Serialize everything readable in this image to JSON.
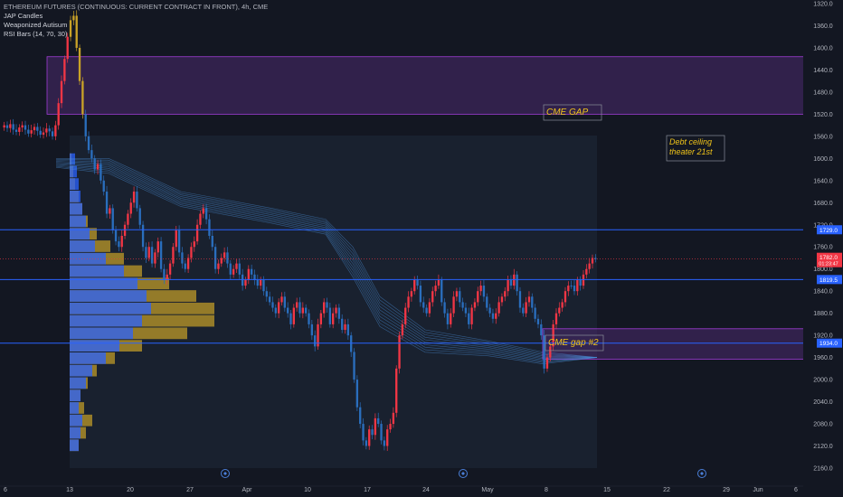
{
  "header": {
    "title": "ETHEREUM FUTURES (CONTINUOUS: CURRENT CONTRACT IN FRONT), 4h, CME",
    "indicators": [
      "JAP Candles",
      "Weaponized Autisum",
      "RSI Bars (14, 70, 30)"
    ]
  },
  "colors": {
    "background": "#131722",
    "up": "#f23645",
    "down": "#2a6ebd",
    "hline": "#2962ff",
    "zone_fill": "#4a2a6e",
    "zone_border": "#a03cd6",
    "vp_blue": "#2962ff",
    "vp_gold": "#c9a227",
    "annotation": "#f0c419",
    "price_red": "#f23645"
  },
  "chart_data": {
    "type": "candlestick",
    "price_axis": {
      "min": 1320,
      "max": 2160,
      "inverted": true,
      "ticks": [
        1320,
        1360,
        1400,
        1440,
        1480,
        1520,
        1560,
        1600,
        1640,
        1680,
        1720,
        1760,
        1800,
        1840,
        1880,
        1920,
        1960,
        2000,
        2040,
        2080,
        2120,
        2160
      ]
    },
    "time_axis": {
      "ticks": [
        "6",
        "13",
        "20",
        "27",
        "Apr",
        "10",
        "17",
        "24",
        "May",
        "8",
        "15",
        "22",
        "29",
        "Jun",
        "6"
      ]
    },
    "current_price": "1782.0",
    "countdown": "01:23:47",
    "price_labels": [
      {
        "price": 1729,
        "text": "1729.0",
        "color": "#2962ff"
      },
      {
        "price": 1819,
        "text": "1819.5",
        "color": "#2962ff"
      },
      {
        "price": 1934,
        "text": "1934.0",
        "color": "#2962ff"
      }
    ],
    "horizontal_lines": [
      1729,
      1819,
      1934
    ],
    "zones": [
      {
        "label": "CME GAP",
        "top": 1416,
        "bottom": 1520
      },
      {
        "label": "CME gap #2",
        "top": 1908,
        "bottom": 1963
      }
    ],
    "annotations": [
      {
        "text": "CME GAP"
      },
      {
        "text": "CME gap #2"
      },
      {
        "text": "Debt ceiling theater 21st"
      }
    ],
    "annotation_lines": [
      [
        "Debt ceiling",
        "theater 21st"
      ]
    ],
    "candles_close": [
      1540,
      1545,
      1538,
      1548,
      1552,
      1544,
      1540,
      1548,
      1555,
      1549,
      1543,
      1550,
      1557,
      1553,
      1546,
      1551,
      1560,
      1540,
      1500,
      1460,
      1420,
      1380,
      1350,
      1342,
      1400,
      1460,
      1520,
      1560,
      1585,
      1600,
      1620,
      1610,
      1640,
      1660,
      1700,
      1690,
      1730,
      1750,
      1760,
      1740,
      1720,
      1700,
      1680,
      1660,
      1690,
      1720,
      1760,
      1780,
      1760,
      1790,
      1770,
      1750,
      1800,
      1820,
      1810,
      1790,
      1760,
      1730,
      1770,
      1790,
      1800,
      1780,
      1760,
      1750,
      1720,
      1700,
      1690,
      1710,
      1740,
      1760,
      1800,
      1790,
      1780,
      1770,
      1790,
      1810,
      1800,
      1790,
      1810,
      1830,
      1820,
      1800,
      1810,
      1820,
      1830,
      1820,
      1840,
      1850,
      1860,
      1870,
      1880,
      1860,
      1850,
      1870,
      1880,
      1900,
      1870,
      1860,
      1880,
      1870,
      1880,
      1900,
      1920,
      1940,
      1900,
      1880,
      1860,
      1870,
      1900,
      1880,
      1870,
      1890,
      1910,
      1900,
      1920,
      1950,
      2000,
      2050,
      2080,
      2110,
      2120,
      2090,
      2100,
      2070,
      2080,
      2110,
      2120,
      2090,
      2080,
      2060,
      1980,
      1920,
      1900,
      1870,
      1850,
      1840,
      1820,
      1830,
      1860,
      1870,
      1880,
      1860,
      1840,
      1830,
      1820,
      1860,
      1880,
      1900,
      1880,
      1850,
      1840,
      1860,
      1870,
      1880,
      1900,
      1870,
      1860,
      1840,
      1830,
      1850,
      1870,
      1880,
      1890,
      1880,
      1860,
      1850,
      1840,
      1820,
      1830,
      1810,
      1840,
      1870,
      1880,
      1860,
      1850,
      1870,
      1890,
      1900,
      1920,
      1980,
      1960,
      1940,
      1900,
      1880,
      1870,
      1860,
      1840,
      1830,
      1830,
      1840,
      1820,
      1830,
      1810,
      1800,
      1790,
      1780,
      1782
    ],
    "volume_profile_levels": 24
  }
}
